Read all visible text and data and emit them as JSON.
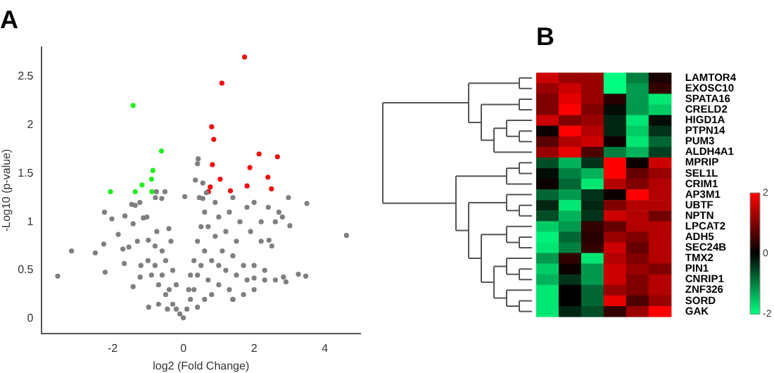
{
  "chart_data": [
    {
      "type": "scatter",
      "title": "A",
      "xlabel": "log2 (Fold Change)",
      "ylabel": "-Log10 (p-value)",
      "xlim": [
        -4,
        5
      ],
      "ylim": [
        -0.15,
        2.8
      ],
      "xticks": [
        -2,
        0,
        2,
        4
      ],
      "yticks": [
        0,
        0.5,
        1,
        1.5,
        2,
        2.5
      ],
      "marker": "circle",
      "series": [
        {
          "color": "#7f7f7f",
          "x": [
            -3.55,
            -3.16,
            -2.49,
            -2.25,
            -2.21,
            -2.23,
            -2.02,
            -1.84,
            -1.65,
            -1.71,
            -1.67,
            -1.46,
            -1.36,
            -1.23,
            -1.42,
            -1.13,
            -1.03,
            -0.76,
            -0.52,
            -0.79,
            -0.61,
            -0.41,
            -0.75,
            -0.98,
            -1.22,
            -1.42,
            -1.54,
            -0.99,
            -1.2,
            -1.0,
            -0.9,
            -0.8,
            -0.7,
            -0.6,
            -0.5,
            -0.4,
            -0.3,
            -0.2,
            -0.1,
            0,
            -0.6,
            -0.5,
            -0.8,
            -0.3,
            -0.2,
            -1.3,
            -0.35,
            -0.45,
            -0.7,
            0.1,
            0.2,
            0.3,
            0.4,
            0.5,
            0.3,
            0.4,
            0.5,
            0.6,
            0.45,
            0.6,
            0.8,
            1.0,
            1.2,
            1.5,
            1.8,
            2.0,
            2.3,
            2.6,
            2.9,
            1.0,
            1.3,
            0.8,
            0.6,
            0.4,
            0.7,
            1.1,
            1.4,
            1.7,
            2.0,
            2.3,
            0.9,
            1.2,
            1.5,
            0.7,
            1.0,
            1.3,
            1.6,
            1.9,
            2.2,
            0.55,
            0.65,
            0.4,
            0.9,
            1.4,
            1.8,
            2.0,
            2.4,
            2.6,
            2.8,
            2.2,
            2.5,
            1.4,
            1.7,
            2.0,
            1.4,
            0.2,
            0.15,
            2.97,
            3.49,
            3.01,
            4.61,
            3.25,
            3.46,
            2.83,
            2.42,
            2.7,
            0.04,
            0.42,
            0.34,
            0.55
          ],
          "values": [
            0.44,
            0.7,
            0.68,
            0.77,
            0.48,
            1.1,
            1.03,
            0.87,
            1.06,
            0.72,
            0.57,
            1.18,
            1.17,
            1.2,
            0.98,
            1.04,
            1.05,
            1.31,
            1.31,
            1.25,
            1.24,
            0.93,
            0.9,
            0.12,
            0.43,
            0.33,
            0.74,
            0.81,
            0.55,
            0.6,
            0.45,
            0.55,
            0.35,
            0.45,
            0.25,
            0.3,
            0.15,
            0.1,
            0.05,
            0.01,
            0.7,
            0.6,
            0.75,
            0.5,
            0.35,
            0.8,
            0.8,
            0.1,
            0.15,
            0.1,
            0.2,
            0.3,
            0.45,
            0.55,
            0.6,
            0.8,
            0.95,
            1.1,
            1.25,
            0.7,
            0.6,
            0.55,
            0.5,
            0.45,
            0.4,
            0.42,
            0.4,
            0.4,
            0.38,
            0.35,
            0.3,
            0.25,
            0.2,
            0.12,
            0.4,
            0.7,
            0.65,
            0.55,
            0.55,
            0.5,
            0.85,
            0.9,
            0.8,
            0.95,
            1.05,
            1.1,
            1.0,
            0.9,
            1.0,
            1.4,
            1.3,
            1.6,
            1.2,
            1.25,
            1.15,
            1.2,
            1.15,
            1.0,
            1.05,
            0.8,
            0.75,
            0.2,
            0.25,
            0.3,
            0.2,
            0.45,
            0.3,
            1.25,
            1.19,
            0.96,
            0.86,
            0.46,
            0.44,
            0.43,
            0.81,
            1.1,
            1.26,
            1.65,
            1.43,
            1.24
          ]
        },
        {
          "color": "#22ee22",
          "x": [
            -1.42,
            -0.62,
            -0.86,
            -0.9,
            -1.17,
            -2.06,
            -1.36,
            -0.89
          ],
          "values": [
            2.2,
            1.73,
            1.53,
            1.44,
            1.38,
            1.31,
            1.31,
            1.31
          ]
        },
        {
          "color": "#ee1111",
          "x": [
            1.73,
            1.09,
            0.8,
            0.86,
            2.14,
            2.66,
            0.82,
            1.88,
            1.04,
            2.39,
            0.76,
            1.8,
            2.49,
            0.71,
            1.33
          ],
          "values": [
            2.7,
            2.43,
            1.98,
            1.85,
            1.7,
            1.67,
            1.59,
            1.56,
            1.44,
            1.46,
            1.36,
            1.37,
            1.34,
            1.31,
            1.32
          ]
        }
      ]
    },
    {
      "type": "heatmap",
      "title": "B",
      "categories": [
        null,
        null,
        null,
        null,
        null,
        null
      ],
      "y_categories": [
        "LAMTOR4",
        "EXOSC10",
        "SPATA16",
        "CRELD2",
        "HIGD1A",
        "PTPN14",
        "PUM3",
        "ALDH4A1",
        "MPRIP",
        "SEL1L",
        "CRIM1",
        "AP3M1",
        "UBTF",
        "NPTN",
        "LPCAT2",
        "ADH5",
        "SEC24B",
        "TMX2",
        "PIN1",
        "CNRIP1",
        "ZNF326",
        "SORD",
        "GAK"
      ],
      "cells": [
        [
          1.6,
          1.2,
          1.2,
          -2,
          -1.0,
          0.2
        ],
        [
          1.2,
          1.6,
          1.2,
          -2,
          -1.2,
          0.4
        ],
        [
          1.0,
          1.8,
          1.2,
          0.3,
          -1.2,
          -1.8
        ],
        [
          1.0,
          2.0,
          1.0,
          -0.1,
          -1.2,
          -1.6
        ],
        [
          1.6,
          1.0,
          1.2,
          -0.3,
          -1.8,
          -0.1
        ],
        [
          0.1,
          2.0,
          1.4,
          -0.3,
          -1.6,
          -0.4
        ],
        [
          0.7,
          1.4,
          1.6,
          0.1,
          -1.8,
          -0.8
        ],
        [
          1.2,
          1.8,
          0.6,
          -1.0,
          -1.4,
          -0.5
        ],
        [
          -0.6,
          -1.4,
          -0.4,
          2.0,
          0.1,
          1.6
        ],
        [
          -0.1,
          -1.0,
          -1.4,
          2.0,
          0.8,
          1.2
        ],
        [
          0.1,
          -0.8,
          -1.8,
          1.4,
          1.0,
          1.4
        ],
        [
          -0.8,
          -1.2,
          -0.4,
          0.1,
          2.0,
          1.4
        ],
        [
          -0.3,
          -1.8,
          -0.3,
          1.0,
          1.4,
          1.4
        ],
        [
          -0.6,
          -1.4,
          -0.4,
          1.6,
          1.4,
          0.9
        ],
        [
          -1.6,
          -1.2,
          0.4,
          0.8,
          1.4,
          1.4
        ],
        [
          -1.9,
          -0.8,
          0.3,
          1.2,
          1.0,
          1.4
        ],
        [
          -1.8,
          -1.0,
          0.4,
          1.6,
          0.8,
          1.4
        ],
        [
          -1.2,
          0.4,
          -1.8,
          1.4,
          1.0,
          1.4
        ],
        [
          -1.6,
          0.1,
          -1.2,
          1.6,
          1.2,
          1.0
        ],
        [
          -1.4,
          -0.4,
          -1.2,
          1.6,
          1.0,
          1.4
        ],
        [
          -1.8,
          0.0,
          -0.8,
          1.2,
          1.0,
          1.4
        ],
        [
          -1.8,
          0.0,
          -0.8,
          1.8,
          0.6,
          1.2
        ],
        [
          -1.8,
          -0.3,
          -0.6,
          0.4,
          1.2,
          2.0
        ]
      ],
      "clim": [
        -2,
        2
      ],
      "cticks": [
        2,
        0,
        -2
      ]
    }
  ]
}
